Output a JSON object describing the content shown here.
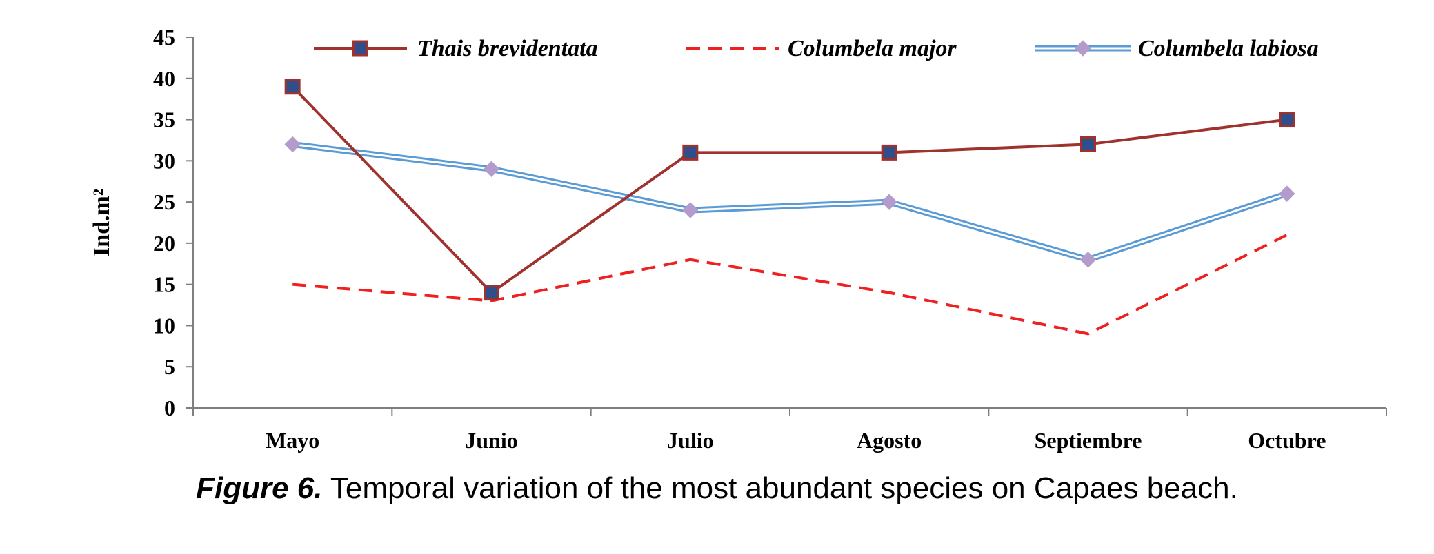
{
  "chart_data": {
    "type": "line",
    "categories": [
      "Mayo",
      "Junio",
      "Julio",
      "Agosto",
      "Septiembre",
      "Octubre"
    ],
    "series": [
      {
        "name": "Thais brevidentata",
        "values": [
          39,
          14,
          31,
          31,
          32,
          35
        ],
        "color": "#a0322e",
        "style": "solid-square-markers",
        "marker_color": "#2e4f8c"
      },
      {
        "name": "Columbela major",
        "values": [
          15,
          13,
          18,
          14,
          9,
          21
        ],
        "color": "#ee2020",
        "style": "dashed"
      },
      {
        "name": "Columbela labiosa",
        "values": [
          32,
          29,
          24,
          25,
          18,
          26
        ],
        "color": "#5b9bd5",
        "style": "double-line-diamond-markers",
        "marker_color": "#b39bcc"
      }
    ],
    "ylabel": "Ind.m²",
    "xlabel": "",
    "ylim": [
      0,
      45
    ],
    "yticks": [
      0,
      5,
      10,
      15,
      20,
      25,
      30,
      35,
      40,
      45
    ],
    "legend_position": "top",
    "grid": false
  },
  "caption": {
    "label": "Figure 6.",
    "text": " Temporal variation of the most abundant species on Capaes beach."
  }
}
